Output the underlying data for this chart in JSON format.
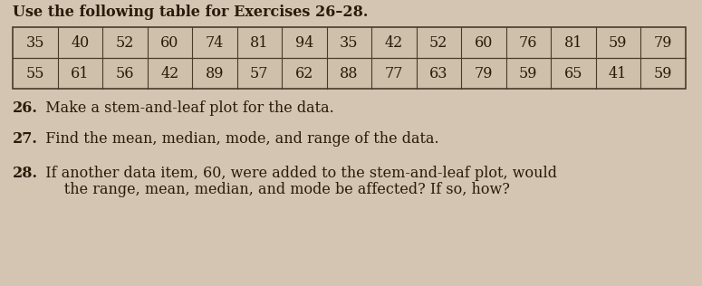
{
  "title": "Use the following table for Exercises 26–28.",
  "table_row1": [
    35,
    40,
    52,
    60,
    74,
    81,
    94,
    35,
    42,
    52,
    60,
    76,
    81,
    59,
    79
  ],
  "table_row2": [
    55,
    61,
    56,
    42,
    89,
    57,
    62,
    88,
    77,
    63,
    79,
    59,
    65,
    41,
    59
  ],
  "bg_color": "#d4c5b2",
  "cell_bg": "#cfc0ac",
  "border_color": "#4a3a2a",
  "text_color": "#2a1a0a",
  "title_fontsize": 11.5,
  "table_fontsize": 11.5,
  "q_fontsize": 11.5,
  "q26_num": "26.",
  "q26_text": "  Make a stem-and-leaf plot for the data.",
  "q27_num": "27.",
  "q27_text": "  Find the mean, median, mode, and range of the data.",
  "q28_num": "28.",
  "q28_text1": "  If another data item, 60, were added to the stem-and-leaf plot, would",
  "q28_text2": "      the range, mean, median, and mode be affected? If so, how?"
}
